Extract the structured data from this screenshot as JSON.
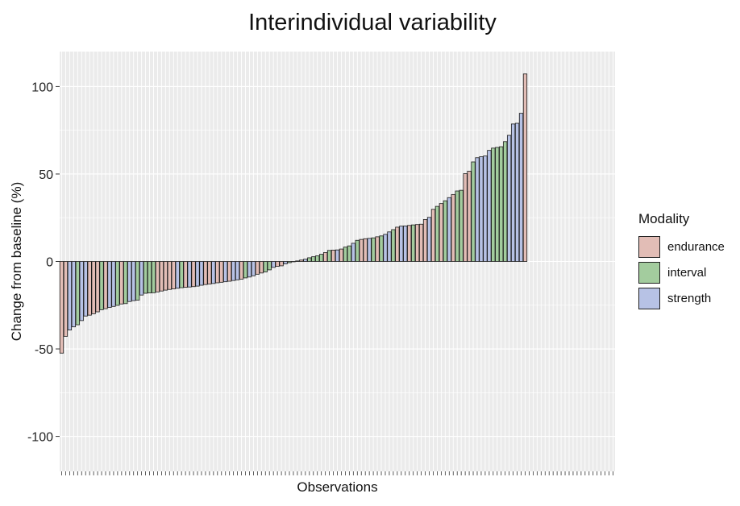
{
  "chart_data": {
    "type": "bar",
    "title": "Interindividual variability",
    "xlabel": "Observations",
    "ylabel": "Change from baseline (%)",
    "ylim": [
      -120,
      120
    ],
    "yticks": [
      -100,
      -50,
      0,
      50,
      100
    ],
    "grid": true,
    "legend": {
      "title": "Modality",
      "position": "right",
      "entries": [
        {
          "name": "endurance",
          "color": "#e2bdb6"
        },
        {
          "name": "interval",
          "color": "#a3cc9e"
        },
        {
          "name": "strength",
          "color": "#b7c2e5"
        }
      ]
    },
    "x_categories_total": 139,
    "bars": [
      {
        "value": -52.4,
        "modality": "endurance"
      },
      {
        "value": -42.8,
        "modality": "endurance"
      },
      {
        "value": -39.2,
        "modality": "strength"
      },
      {
        "value": -37.4,
        "modality": "strength"
      },
      {
        "value": -36.2,
        "modality": "interval"
      },
      {
        "value": -33.8,
        "modality": "strength"
      },
      {
        "value": -31.2,
        "modality": "strength"
      },
      {
        "value": -30.7,
        "modality": "endurance"
      },
      {
        "value": -29.9,
        "modality": "endurance"
      },
      {
        "value": -28.8,
        "modality": "endurance"
      },
      {
        "value": -27.6,
        "modality": "interval"
      },
      {
        "value": -27.0,
        "modality": "endurance"
      },
      {
        "value": -26.3,
        "modality": "strength"
      },
      {
        "value": -25.7,
        "modality": "strength"
      },
      {
        "value": -25.1,
        "modality": "interval"
      },
      {
        "value": -24.3,
        "modality": "endurance"
      },
      {
        "value": -24.1,
        "modality": "interval"
      },
      {
        "value": -22.9,
        "modality": "strength"
      },
      {
        "value": -22.4,
        "modality": "strength"
      },
      {
        "value": -22.1,
        "modality": "interval"
      },
      {
        "value": -19.2,
        "modality": "strength"
      },
      {
        "value": -18.2,
        "modality": "interval"
      },
      {
        "value": -18.0,
        "modality": "interval"
      },
      {
        "value": -17.9,
        "modality": "interval"
      },
      {
        "value": -17.4,
        "modality": "endurance"
      },
      {
        "value": -16.9,
        "modality": "endurance"
      },
      {
        "value": -16.4,
        "modality": "endurance"
      },
      {
        "value": -16.0,
        "modality": "endurance"
      },
      {
        "value": -15.7,
        "modality": "endurance"
      },
      {
        "value": -15.3,
        "modality": "strength"
      },
      {
        "value": -15.0,
        "modality": "interval"
      },
      {
        "value": -14.8,
        "modality": "endurance"
      },
      {
        "value": -14.6,
        "modality": "strength"
      },
      {
        "value": -14.4,
        "modality": "endurance"
      },
      {
        "value": -14.1,
        "modality": "strength"
      },
      {
        "value": -13.6,
        "modality": "strength"
      },
      {
        "value": -13.2,
        "modality": "endurance"
      },
      {
        "value": -12.9,
        "modality": "endurance"
      },
      {
        "value": -12.6,
        "modality": "strength"
      },
      {
        "value": -12.2,
        "modality": "endurance"
      },
      {
        "value": -11.9,
        "modality": "endurance"
      },
      {
        "value": -11.6,
        "modality": "strength"
      },
      {
        "value": -11.3,
        "modality": "endurance"
      },
      {
        "value": -10.9,
        "modality": "strength"
      },
      {
        "value": -10.5,
        "modality": "strength"
      },
      {
        "value": -10.1,
        "modality": "endurance"
      },
      {
        "value": -9.4,
        "modality": "interval"
      },
      {
        "value": -8.9,
        "modality": "strength"
      },
      {
        "value": -8.2,
        "modality": "strength"
      },
      {
        "value": -7.3,
        "modality": "endurance"
      },
      {
        "value": -6.6,
        "modality": "endurance"
      },
      {
        "value": -6.0,
        "modality": "interval"
      },
      {
        "value": -4.8,
        "modality": "interval"
      },
      {
        "value": -3.4,
        "modality": "strength"
      },
      {
        "value": -2.8,
        "modality": "endurance"
      },
      {
        "value": -2.5,
        "modality": "endurance"
      },
      {
        "value": -1.4,
        "modality": "strength"
      },
      {
        "value": -0.7,
        "modality": "interval"
      },
      {
        "value": -0.2,
        "modality": "strength"
      },
      {
        "value": 0.3,
        "modality": "endurance"
      },
      {
        "value": 0.8,
        "modality": "endurance"
      },
      {
        "value": 1.3,
        "modality": "strength"
      },
      {
        "value": 2.1,
        "modality": "interval"
      },
      {
        "value": 2.7,
        "modality": "interval"
      },
      {
        "value": 3.2,
        "modality": "interval"
      },
      {
        "value": 4.1,
        "modality": "interval"
      },
      {
        "value": 5.1,
        "modality": "endurance"
      },
      {
        "value": 6.3,
        "modality": "interval"
      },
      {
        "value": 6.5,
        "modality": "endurance"
      },
      {
        "value": 6.6,
        "modality": "strength"
      },
      {
        "value": 7.1,
        "modality": "endurance"
      },
      {
        "value": 8.2,
        "modality": "interval"
      },
      {
        "value": 8.9,
        "modality": "interval"
      },
      {
        "value": 10.4,
        "modality": "strength"
      },
      {
        "value": 12.1,
        "modality": "interval"
      },
      {
        "value": 12.6,
        "modality": "endurance"
      },
      {
        "value": 13.0,
        "modality": "endurance"
      },
      {
        "value": 13.2,
        "modality": "strength"
      },
      {
        "value": 13.5,
        "modality": "interval"
      },
      {
        "value": 14.1,
        "modality": "endurance"
      },
      {
        "value": 14.6,
        "modality": "interval"
      },
      {
        "value": 15.5,
        "modality": "strength"
      },
      {
        "value": 16.9,
        "modality": "strength"
      },
      {
        "value": 18.2,
        "modality": "interval"
      },
      {
        "value": 19.6,
        "modality": "endurance"
      },
      {
        "value": 20.2,
        "modality": "strength"
      },
      {
        "value": 20.3,
        "modality": "strength"
      },
      {
        "value": 20.6,
        "modality": "endurance"
      },
      {
        "value": 20.9,
        "modality": "interval"
      },
      {
        "value": 21.1,
        "modality": "endurance"
      },
      {
        "value": 21.3,
        "modality": "endurance"
      },
      {
        "value": 24.0,
        "modality": "endurance"
      },
      {
        "value": 25.2,
        "modality": "strength"
      },
      {
        "value": 29.8,
        "modality": "endurance"
      },
      {
        "value": 31.5,
        "modality": "interval"
      },
      {
        "value": 33.1,
        "modality": "endurance"
      },
      {
        "value": 34.7,
        "modality": "interval"
      },
      {
        "value": 36.5,
        "modality": "strength"
      },
      {
        "value": 38.3,
        "modality": "endurance"
      },
      {
        "value": 40.3,
        "modality": "interval"
      },
      {
        "value": 40.7,
        "modality": "interval"
      },
      {
        "value": 50.2,
        "modality": "endurance"
      },
      {
        "value": 51.6,
        "modality": "endurance"
      },
      {
        "value": 56.9,
        "modality": "interval"
      },
      {
        "value": 59.3,
        "modality": "strength"
      },
      {
        "value": 59.9,
        "modality": "strength"
      },
      {
        "value": 60.3,
        "modality": "strength"
      },
      {
        "value": 63.5,
        "modality": "strength"
      },
      {
        "value": 64.8,
        "modality": "interval"
      },
      {
        "value": 65.2,
        "modality": "interval"
      },
      {
        "value": 65.6,
        "modality": "interval"
      },
      {
        "value": 68.5,
        "modality": "interval"
      },
      {
        "value": 72.1,
        "modality": "strength"
      },
      {
        "value": 78.6,
        "modality": "strength"
      },
      {
        "value": 79.0,
        "modality": "strength"
      },
      {
        "value": 84.7,
        "modality": "strength"
      },
      {
        "value": 107.2,
        "modality": "endurance"
      }
    ]
  }
}
